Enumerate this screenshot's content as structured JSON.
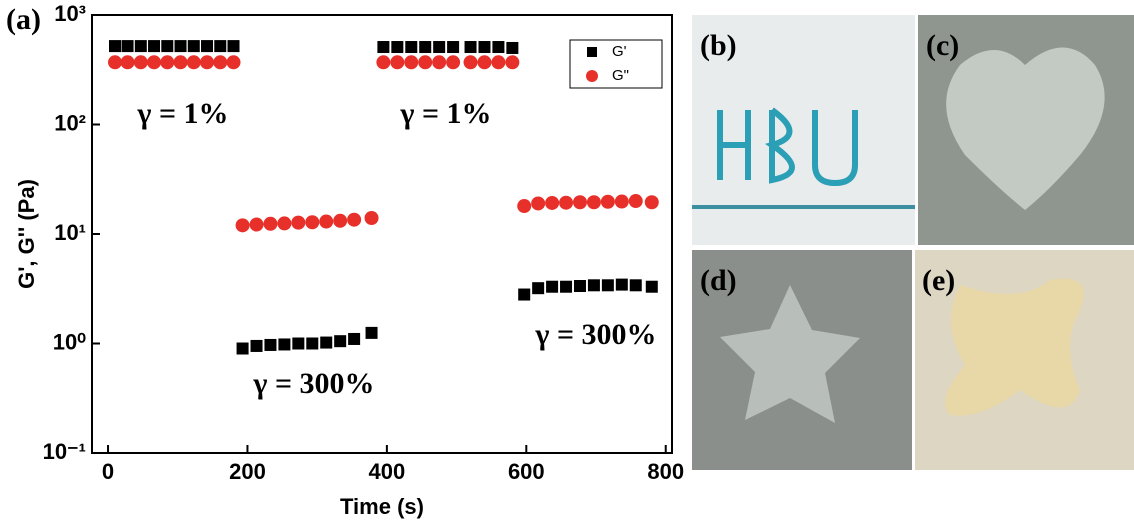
{
  "chart_data": {
    "type": "scatter",
    "panel_label": "(a)",
    "x_label": "Time (s)",
    "y_label": "G', G'' (Pa)",
    "xlim": [
      -23,
      809
    ],
    "ylim": [
      0.1,
      1000
    ],
    "log_y": true,
    "xticks": [
      0,
      200,
      400,
      600,
      800
    ],
    "yticks": [
      {
        "value": 0.1,
        "label": "10⁻¹"
      },
      {
        "value": 1,
        "label": "10⁰"
      },
      {
        "value": 10,
        "label": "10¹"
      },
      {
        "value": 100,
        "label": "10²"
      },
      {
        "value": 1000,
        "label": "10³"
      }
    ],
    "legend": "upper right",
    "x": [
      10,
      28,
      47,
      66,
      85,
      104,
      123,
      142,
      161,
      180,
      193,
      213,
      233,
      253,
      273,
      293,
      313,
      333,
      353,
      378,
      395,
      415,
      435,
      455,
      475,
      495,
      520,
      540,
      560,
      580,
      597,
      617,
      637,
      657,
      677,
      697,
      717,
      737,
      757,
      780
    ],
    "series": [
      {
        "name": "G'",
        "color": "#000000",
        "marker": "square",
        "values": [
          520,
          520,
          520,
          520,
          520,
          520,
          520,
          520,
          520,
          520,
          0.9,
          0.95,
          0.97,
          0.98,
          1.0,
          1.0,
          1.02,
          1.05,
          1.1,
          1.25,
          510,
          510,
          510,
          510,
          510,
          510,
          510,
          510,
          510,
          500,
          2.8,
          3.2,
          3.3,
          3.3,
          3.35,
          3.4,
          3.4,
          3.45,
          3.4,
          3.3
        ]
      },
      {
        "name": "G\"",
        "color": "#e8302a",
        "marker": "circle",
        "values": [
          370,
          370,
          370,
          370,
          370,
          370,
          370,
          370,
          370,
          370,
          12,
          12.2,
          12.4,
          12.5,
          12.7,
          12.8,
          13,
          13.2,
          13.5,
          14,
          370,
          370,
          370,
          370,
          370,
          370,
          370,
          370,
          370,
          370,
          18,
          19,
          19.2,
          19.3,
          19.5,
          19.5,
          19.7,
          19.8,
          20,
          19.5
        ]
      }
    ],
    "annotations": [
      "γ = 1%",
      "γ = 1%",
      "γ = 300%",
      "γ = 300%"
    ]
  },
  "photo_panels": [
    "(b)",
    "(c)",
    "(d)",
    "(e)"
  ]
}
